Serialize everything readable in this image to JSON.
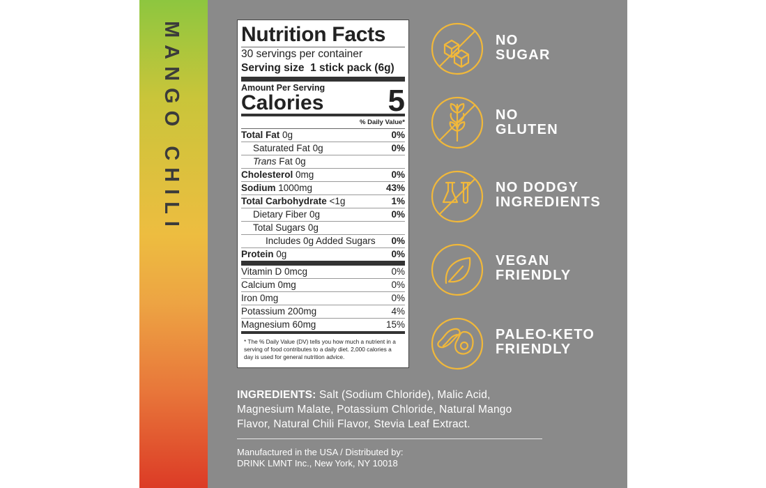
{
  "side_label": "MANGO CHILI",
  "nutrition": {
    "title": "Nutrition Facts",
    "servings": "30 servings per container",
    "serving_size_label": "Serving size",
    "serving_size": "1 stick pack (6g)",
    "amount_per_serving": "Amount Per Serving",
    "calories_label": "Calories",
    "calories": 5,
    "dv_header": "% Daily Value*",
    "rows": [
      {
        "name": "Total Fat",
        "amount": "0g",
        "dv": "0%"
      },
      {
        "name": "Saturated Fat",
        "amount": "0g",
        "dv": "0%"
      },
      {
        "prefix": "Trans",
        "name": "Fat",
        "amount": "0g"
      },
      {
        "name": "Cholesterol",
        "amount": "0mg",
        "dv": "0%"
      },
      {
        "name": "Sodium",
        "amount": "1000mg",
        "dv": "43%"
      },
      {
        "name": "Total Carbohydrate",
        "amount": "<1g",
        "dv": "1%"
      },
      {
        "name": "Dietary Fiber",
        "amount": "0g",
        "dv": "0%"
      },
      {
        "name": "Total Sugars",
        "amount": "0g"
      },
      {
        "name": "Includes 0g Added Sugars",
        "dv": "0%"
      },
      {
        "name": "Protein",
        "amount": "0g",
        "dv": "0%"
      }
    ],
    "vitamins": [
      {
        "name": "Vitamin D",
        "amount": "0mcg",
        "dv": "0%"
      },
      {
        "name": "Calcium",
        "amount": "0mg",
        "dv": "0%"
      },
      {
        "name": "Iron",
        "amount": "0mg",
        "dv": "0%"
      },
      {
        "name": "Potassium",
        "amount": "200mg",
        "dv": "4%"
      },
      {
        "name": "Magnesium",
        "amount": "60mg",
        "dv": "15%"
      }
    ],
    "footnote": "* The % Daily Value (DV) tells you how much a nutrient in a serving of food contributes to a daily diet. 2,000 calories a day is used for general nutrition advice."
  },
  "badges": [
    {
      "line1": "NO",
      "line2": "SUGAR"
    },
    {
      "line1": "NO",
      "line2": "GLUTEN"
    },
    {
      "line1": "NO DODGY",
      "line2": "INGREDIENTS"
    },
    {
      "line1": "VEGAN",
      "line2": "FRIENDLY"
    },
    {
      "line1": "PALEO-KETO",
      "line2": "FRIENDLY"
    }
  ],
  "ingredients": {
    "label": "INGREDIENTS:",
    "text": "Salt (Sodium Chloride), Malic Acid, Magnesium Malate, Potassium Chloride, Natural Mango Flavor, Natural Chili Flavor, Stevia Leaf Extract."
  },
  "manufacturer": {
    "line1": "Manufactured in the USA / Distributed by:",
    "line2": "DRINK LMNT Inc., New York, NY 10018"
  }
}
